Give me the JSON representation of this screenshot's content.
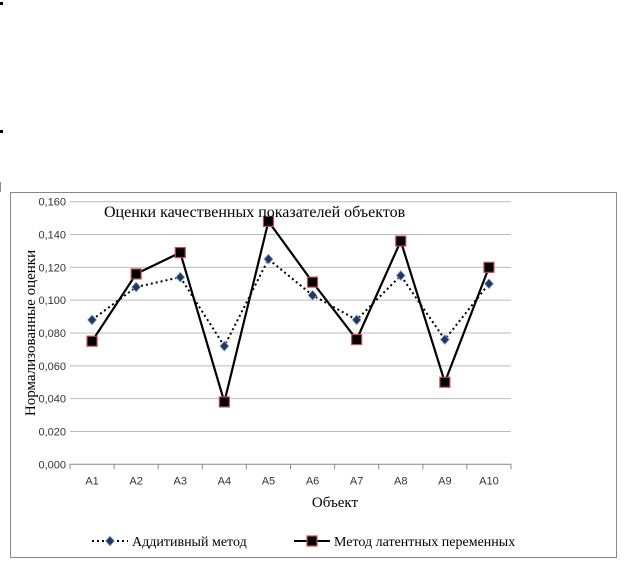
{
  "chart_data": {
    "type": "line",
    "title": "Оценки качественных показателей объектов",
    "xlabel": "Объект",
    "ylabel": "Нормализованные оценки",
    "categories": [
      "A1",
      "A2",
      "A3",
      "A4",
      "A5",
      "A6",
      "A7",
      "A8",
      "A9",
      "A10"
    ],
    "ylim": [
      0,
      0.16
    ],
    "yticks": [
      "0,000",
      "0,020",
      "0,040",
      "0,060",
      "0,080",
      "0,100",
      "0,120",
      "0,140",
      "0,160"
    ],
    "ytick_values": [
      0,
      0.02,
      0.04,
      0.06,
      0.08,
      0.1,
      0.12,
      0.14,
      0.16
    ],
    "grid": true,
    "legend_position": "bottom",
    "series": [
      {
        "name": "Аддитивный метод",
        "style": "dotted",
        "marker": "diamond",
        "color": "#000000",
        "marker_color": "#1f3864",
        "values": [
          0.088,
          0.108,
          0.114,
          0.072,
          0.125,
          0.103,
          0.088,
          0.115,
          0.076,
          0.11
        ]
      },
      {
        "name": "Метод латентных переменных",
        "style": "solid",
        "marker": "square",
        "color": "#000000",
        "marker_color": "#000000",
        "marker_edge": "#c0504d",
        "values": [
          0.075,
          0.116,
          0.129,
          0.038,
          0.148,
          0.111,
          0.076,
          0.136,
          0.05,
          0.12
        ]
      }
    ]
  }
}
